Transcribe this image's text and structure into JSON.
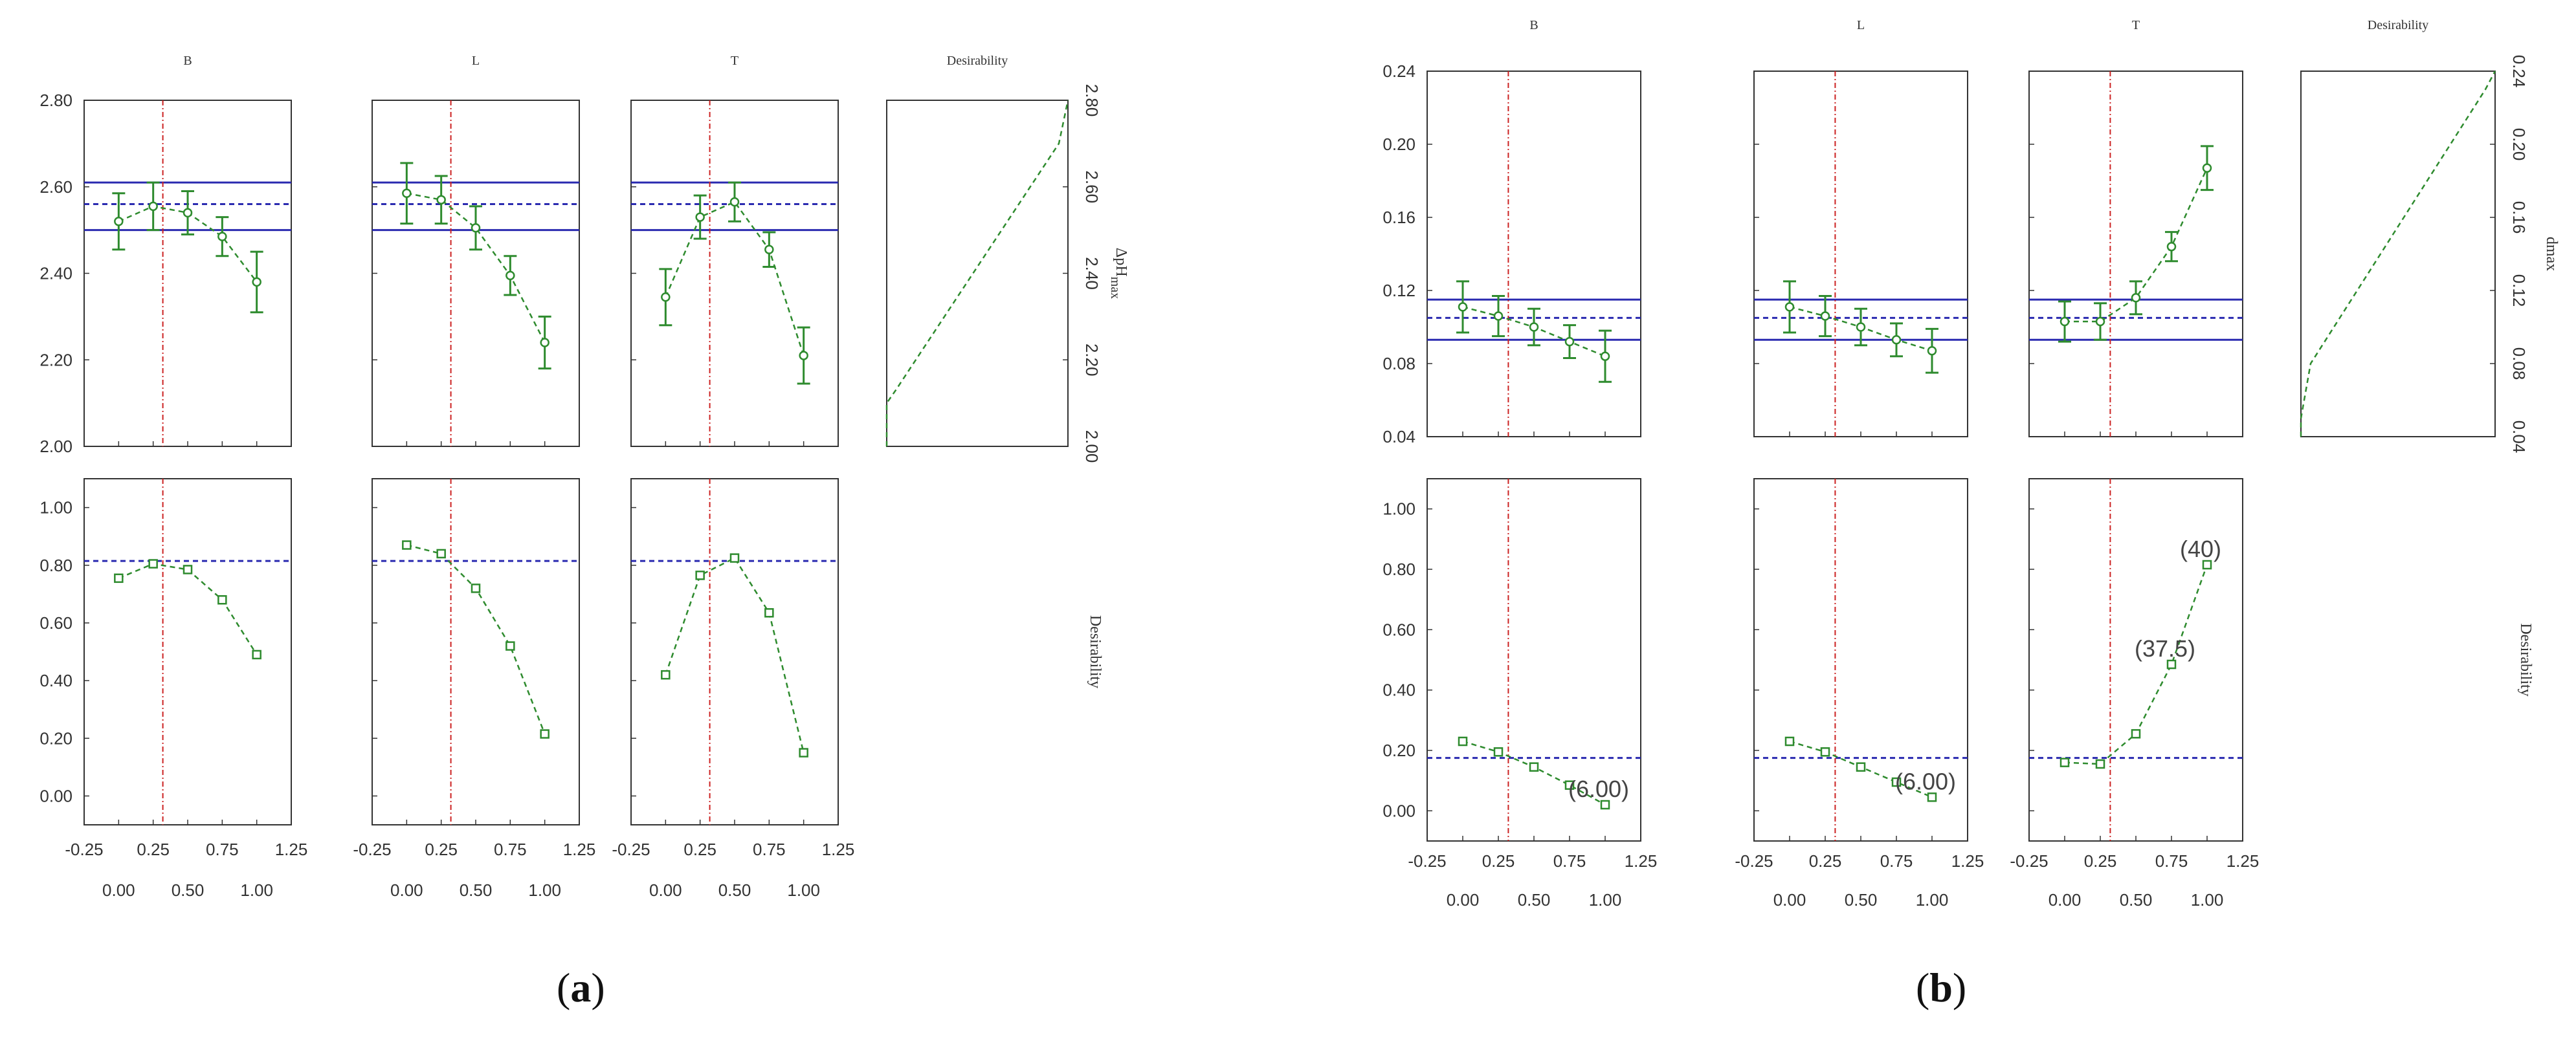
{
  "captions": {
    "a": "a",
    "b": "b"
  },
  "chart_data": [
    {
      "type": "line",
      "id": "a",
      "columns": [
        "B",
        "L",
        "T",
        "Desirability"
      ],
      "x_tick_labels_top": [
        "-0.25",
        "0.25",
        "0.75",
        "1.25"
      ],
      "x_tick_labels_bottom": [
        "0.00",
        "0.50",
        "1.00"
      ],
      "xlim": [
        -0.25,
        1.25
      ],
      "response": {
        "ylabel": "ΔpHmax",
        "ylabel_main": "ΔpH",
        "ylabel_sub": "max",
        "ylim": [
          2.0,
          2.8
        ],
        "y_ticks": [
          "2.00",
          "2.20",
          "2.40",
          "2.60",
          "2.80"
        ],
        "upper_limit": 2.61,
        "lower_limit": 2.5,
        "mid_line": 2.56,
        "optimum_x": 0.32,
        "series": {
          "B": {
            "x": [
              0.0,
              0.25,
              0.5,
              0.75,
              1.0
            ],
            "y": [
              2.52,
              2.555,
              2.54,
              2.485,
              2.38
            ],
            "err": [
              0.065,
              0.055,
              0.05,
              0.045,
              0.07
            ]
          },
          "L": {
            "x": [
              0.0,
              0.25,
              0.5,
              0.75,
              1.0
            ],
            "y": [
              2.585,
              2.57,
              2.505,
              2.395,
              2.24
            ],
            "err": [
              0.07,
              0.055,
              0.05,
              0.045,
              0.06
            ]
          },
          "T": {
            "x": [
              0.0,
              0.25,
              0.5,
              0.75,
              1.0
            ],
            "y": [
              2.345,
              2.53,
              2.565,
              2.455,
              2.21
            ],
            "err": [
              0.065,
              0.05,
              0.045,
              0.04,
              0.065
            ]
          }
        }
      },
      "desirability": {
        "ylabel": "Desirability",
        "ylim": [
          -0.1,
          1.1
        ],
        "y_ticks": [
          "0.00",
          "0.20",
          "0.40",
          "0.60",
          "0.80",
          "1.00"
        ],
        "level": 0.815,
        "optimum_x": 0.32,
        "series": {
          "B": {
            "x": [
              0.0,
              0.25,
              0.5,
              0.75,
              1.0
            ],
            "y": [
              0.755,
              0.805,
              0.785,
              0.68,
              0.49
            ]
          },
          "L": {
            "x": [
              0.0,
              0.25,
              0.5,
              0.75,
              1.0
            ],
            "y": [
              0.87,
              0.84,
              0.72,
              0.52,
              0.215
            ]
          },
          "T": {
            "x": [
              0.0,
              0.25,
              0.5,
              0.75,
              1.0
            ],
            "y": [
              0.42,
              0.765,
              0.825,
              0.635,
              0.15
            ]
          }
        },
        "annotations": {}
      },
      "desirability_profile": {
        "y": [
          2.0,
          2.1,
          2.13,
          2.7,
          2.8
        ],
        "d": [
          0.0,
          0.0,
          0.05,
          0.95,
          1.0
        ]
      }
    },
    {
      "type": "line",
      "id": "b",
      "columns": [
        "B",
        "L",
        "T",
        "Desirability"
      ],
      "x_tick_labels_top": [
        "-0.25",
        "0.25",
        "0.75",
        "1.25"
      ],
      "x_tick_labels_bottom": [
        "0.00",
        "0.50",
        "1.00"
      ],
      "xlim": [
        -0.25,
        1.25
      ],
      "response": {
        "ylabel": "dmax",
        "ylim": [
          0.04,
          0.24
        ],
        "y_ticks": [
          "0.04",
          "0.08",
          "0.12",
          "0.16",
          "0.20",
          "0.24"
        ],
        "upper_limit": 0.115,
        "lower_limit": 0.093,
        "mid_line": 0.105,
        "optimum_x": 0.32,
        "series": {
          "B": {
            "x": [
              0.0,
              0.25,
              0.5,
              0.75,
              1.0
            ],
            "y": [
              0.111,
              0.106,
              0.1,
              0.092,
              0.084
            ],
            "err": [
              0.014,
              0.011,
              0.01,
              0.009,
              0.014
            ]
          },
          "L": {
            "x": [
              0.0,
              0.25,
              0.5,
              0.75,
              1.0
            ],
            "y": [
              0.111,
              0.106,
              0.1,
              0.093,
              0.087
            ],
            "err": [
              0.014,
              0.011,
              0.01,
              0.009,
              0.012
            ]
          },
          "T": {
            "x": [
              0.0,
              0.25,
              0.5,
              0.75,
              1.0
            ],
            "y": [
              0.103,
              0.103,
              0.116,
              0.144,
              0.187
            ],
            "err": [
              0.011,
              0.01,
              0.009,
              0.008,
              0.012
            ]
          }
        }
      },
      "desirability": {
        "ylabel": "Desirability",
        "ylim": [
          -0.1,
          1.1
        ],
        "y_ticks": [
          "0.00",
          "0.20",
          "0.40",
          "0.60",
          "0.80",
          "1.00"
        ],
        "level": 0.175,
        "optimum_x": 0.32,
        "series": {
          "B": {
            "x": [
              0.0,
              0.25,
              0.5,
              0.75,
              1.0
            ],
            "y": [
              0.23,
              0.195,
              0.145,
              0.085,
              0.02
            ]
          },
          "L": {
            "x": [
              0.0,
              0.25,
              0.5,
              0.75,
              1.0
            ],
            "y": [
              0.23,
              0.195,
              0.145,
              0.095,
              0.045
            ]
          },
          "T": {
            "x": [
              0.0,
              0.25,
              0.5,
              0.75,
              1.0
            ],
            "y": [
              0.16,
              0.155,
              0.255,
              0.485,
              0.815
            ]
          }
        },
        "annotations": {
          "B": [
            {
              "x": 1.0,
              "y": 0.02,
              "text": "(6.00)"
            }
          ],
          "L": [
            {
              "x": 1.0,
              "y": 0.045,
              "text": "(6.00)"
            }
          ],
          "T": [
            {
              "x": 0.75,
              "y": 0.485,
              "text": "(37.5)"
            },
            {
              "x": 1.0,
              "y": 0.815,
              "text": "(40)"
            }
          ]
        }
      },
      "desirability_profile": {
        "y": [
          0.04,
          0.05,
          0.08,
          0.23,
          0.24
        ],
        "d": [
          0.0,
          0.0,
          0.05,
          0.95,
          1.0
        ]
      }
    }
  ],
  "colors": {
    "frame": "#333333",
    "series": "#2e8b2e",
    "limit": "#2a2ab0",
    "optimum": "#cc2222"
  }
}
